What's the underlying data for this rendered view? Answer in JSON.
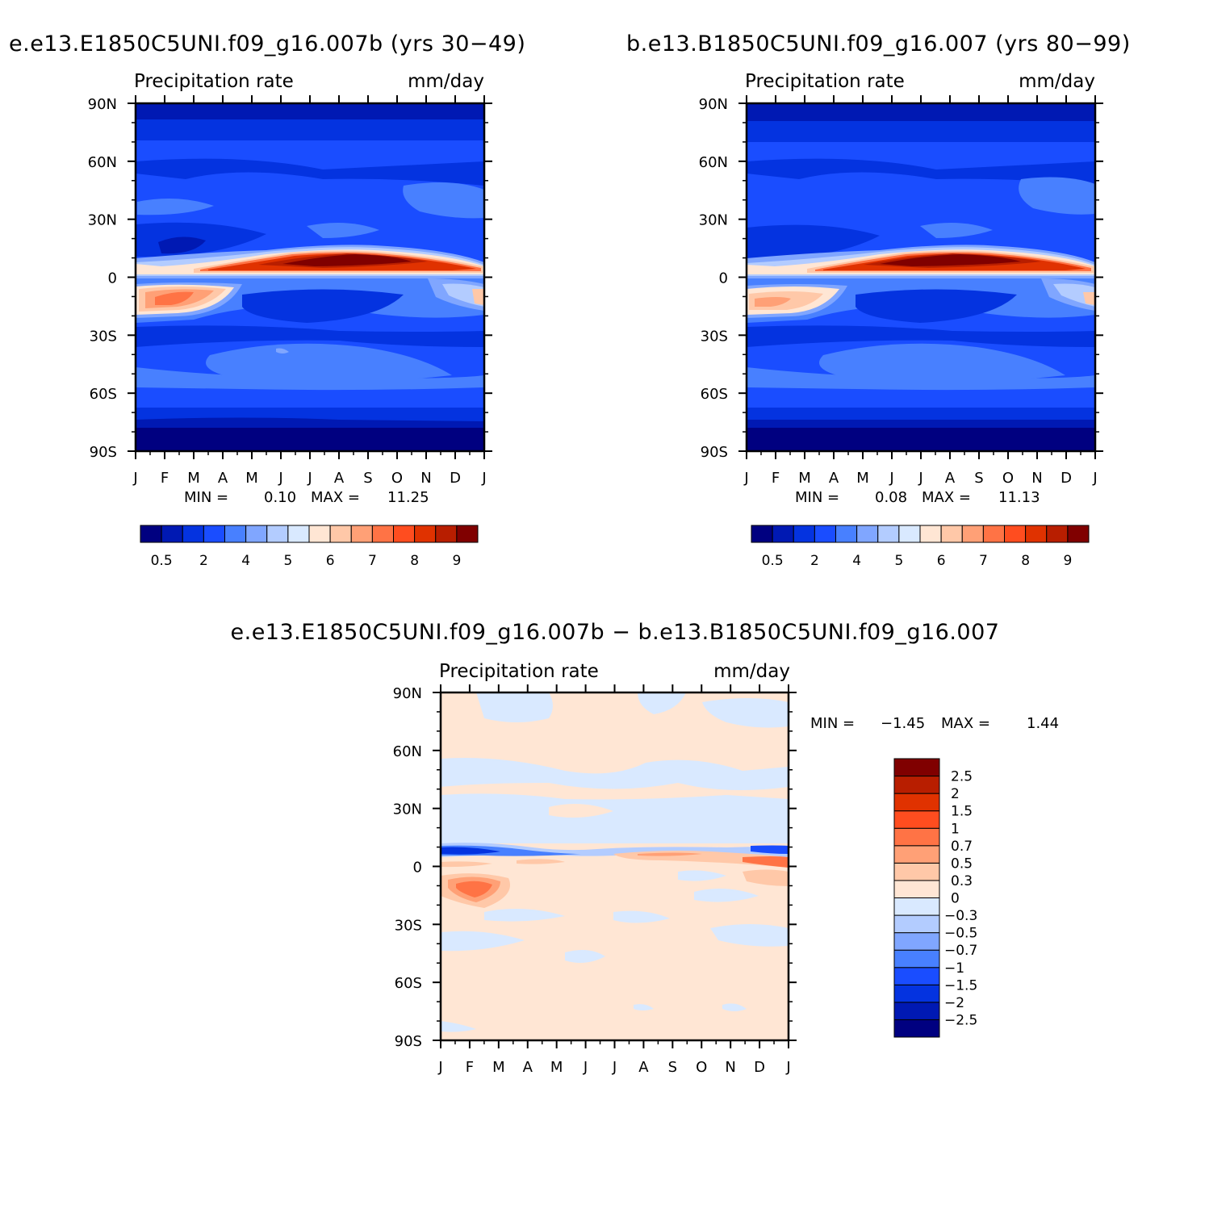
{
  "chart_data": [
    {
      "type": "heatmap",
      "title": "e.e13.E1850C5UNI.f09_g16.007b (yrs 30-49)",
      "subtitle_left": "Precipitation rate",
      "subtitle_right": "mm/day",
      "x_ticks": [
        "J",
        "F",
        "M",
        "A",
        "M",
        "J",
        "J",
        "A",
        "S",
        "O",
        "N",
        "D",
        "J"
      ],
      "y_ticks": [
        "90N",
        "60N",
        "30N",
        "0",
        "30S",
        "60S",
        "90S"
      ],
      "min_label": "MIN =",
      "min_value": "0.10",
      "max_label": "MAX =",
      "max_value": "11.25",
      "colorbar_labels": [
        "0.5",
        "2",
        "4",
        "5",
        "6",
        "7",
        "8",
        "9"
      ],
      "levels_note": "ITCZ max near 5-10N peaking Jul-Aug; SH maximum near 10-20S Jan-Mar",
      "itcz_peak_month": "Aug"
    },
    {
      "type": "heatmap",
      "title": "b.e13.B1850C5UNI.f09_g16.007 (yrs 80-99)",
      "subtitle_left": "Precipitation rate",
      "subtitle_right": "mm/day",
      "x_ticks": [
        "J",
        "F",
        "M",
        "A",
        "M",
        "J",
        "J",
        "A",
        "S",
        "O",
        "N",
        "D",
        "J"
      ],
      "y_ticks": [
        "90N",
        "60N",
        "30N",
        "0",
        "30S",
        "60S",
        "90S"
      ],
      "min_label": "MIN =",
      "min_value": "0.08",
      "max_label": "MAX =",
      "max_value": "11.13",
      "colorbar_labels": [
        "0.5",
        "2",
        "4",
        "5",
        "6",
        "7",
        "8",
        "9"
      ]
    },
    {
      "type": "heatmap",
      "title": "e.e13.E1850C5UNI.f09_g16.007b - b.e13.B1850C5UNI.f09_g16.007",
      "subtitle_left": "Precipitation rate",
      "subtitle_right": "mm/day",
      "x_ticks": [
        "J",
        "F",
        "M",
        "A",
        "M",
        "J",
        "J",
        "A",
        "S",
        "O",
        "N",
        "D",
        "J"
      ],
      "y_ticks": [
        "90N",
        "60N",
        "30N",
        "0",
        "30S",
        "60S",
        "90S"
      ],
      "min_label": "MIN =",
      "min_value": "-1.45",
      "max_label": "MAX =",
      "max_value": "1.44",
      "colorbar_labels": [
        "2.5",
        "2",
        "1.5",
        "1",
        "0.7",
        "0.5",
        "0.3",
        "0",
        "-0.3",
        "-0.5",
        "-0.7",
        "-1",
        "-1.5",
        "-2",
        "-2.5"
      ]
    }
  ],
  "colors": {
    "c1": "#000080",
    "c2": "#0019b3",
    "c3": "#0433e0",
    "c4": "#1a4dff",
    "c5": "#4880ff",
    "c6": "#80a6ff",
    "c7": "#b3ccff",
    "c8": "#d9e9ff",
    "c9": "#ffe6d4",
    "c10": "#ffc8a8",
    "c11": "#ffa076",
    "c12": "#ff7345",
    "c13": "#ff4d1f",
    "c14": "#e03200",
    "c15": "#b81e00",
    "c16": "#800000"
  }
}
